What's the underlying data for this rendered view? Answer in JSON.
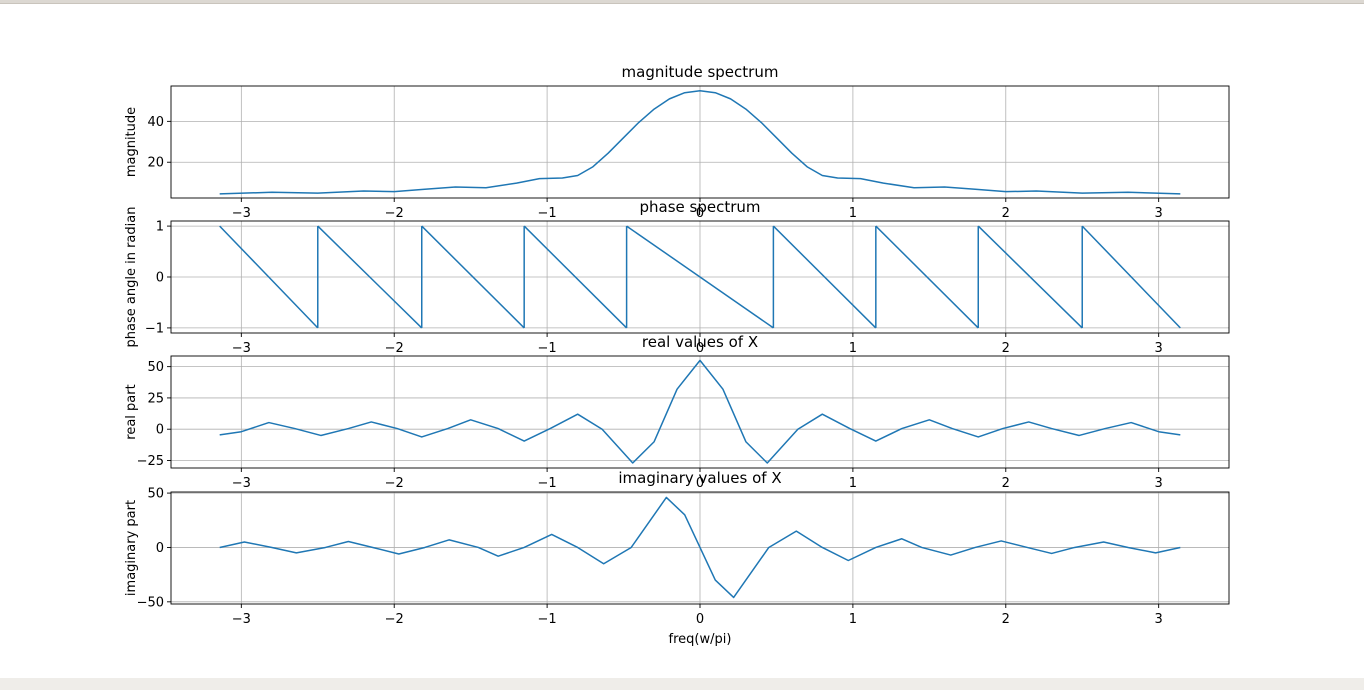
{
  "window": {
    "colors": {
      "line": "#1f77b4",
      "grid": "#b0b0b0",
      "axes": "#000000",
      "toolbar": "#efede9"
    }
  },
  "chart_data": [
    {
      "type": "line",
      "title": "magnitude spectrum",
      "xlabel": "",
      "ylabel": "magnitude",
      "xlim": [
        -3.46,
        3.46
      ],
      "ylim": [
        2.5,
        57.3
      ],
      "xticks": [
        "−3",
        "−2",
        "−1",
        "0",
        "1",
        "2",
        "3"
      ],
      "yticks": [
        "20",
        "40"
      ],
      "grid": true,
      "series": [
        {
          "x": [
            -3.1416,
            -2.8,
            -2.5,
            -2.2,
            -2.0,
            -1.8,
            -1.6,
            -1.4,
            -1.2,
            -1.05,
            -0.9,
            -0.8,
            -0.7,
            -0.6,
            -0.5,
            -0.4,
            -0.3,
            -0.2,
            -0.1,
            0.0,
            0.1,
            0.2,
            0.3,
            0.4,
            0.5,
            0.6,
            0.7,
            0.8,
            0.9,
            1.05,
            1.2,
            1.4,
            1.6,
            1.8,
            2.0,
            2.2,
            2.5,
            2.8,
            3.1416
          ],
          "values": [
            4.5,
            5.3,
            4.9,
            5.9,
            5.6,
            6.8,
            7.9,
            7.5,
            9.8,
            12.0,
            12.3,
            13.5,
            17.8,
            24.5,
            32.0,
            39.5,
            46.0,
            51.0,
            54.0,
            55.0,
            54.0,
            51.0,
            46.0,
            39.5,
            32.0,
            24.5,
            17.8,
            13.5,
            12.3,
            12.0,
            9.8,
            7.5,
            7.9,
            6.8,
            5.6,
            5.9,
            4.9,
            5.3,
            4.5
          ]
        }
      ]
    },
    {
      "type": "line",
      "title": "phase spectrum",
      "xlabel": "",
      "ylabel": "phase angle in radian",
      "xlim": [
        -3.46,
        3.46
      ],
      "ylim": [
        -1.1,
        1.1
      ],
      "xticks": [
        "−3",
        "−2",
        "−1",
        "0",
        "1",
        "2",
        "3"
      ],
      "yticks": [
        "−1",
        "0",
        "1"
      ],
      "grid": true,
      "series": [
        {
          "segments": [
            {
              "x": [
                -3.1416,
                -2.5
              ],
              "values": [
                1,
                -1
              ]
            },
            {
              "x": [
                -2.5,
                -1.82
              ],
              "values": [
                1,
                -1
              ]
            },
            {
              "x": [
                -1.82,
                -1.15
              ],
              "values": [
                1,
                -1
              ]
            },
            {
              "x": [
                -1.15,
                -0.48
              ],
              "values": [
                1,
                -1
              ]
            },
            {
              "x": [
                -0.48,
                0.48
              ],
              "values": [
                1,
                -1
              ]
            },
            {
              "x": [
                0.48,
                1.15
              ],
              "values": [
                1,
                -1
              ]
            },
            {
              "x": [
                1.15,
                1.82
              ],
              "values": [
                1,
                -1
              ]
            },
            {
              "x": [
                1.82,
                2.5
              ],
              "values": [
                1,
                -1
              ]
            },
            {
              "x": [
                2.5,
                3.1416
              ],
              "values": [
                1,
                -1
              ]
            }
          ]
        }
      ]
    },
    {
      "type": "line",
      "title": "real values of X",
      "xlabel": "",
      "ylabel": "real part",
      "xlim": [
        -3.46,
        3.46
      ],
      "ylim": [
        -31,
        58.5
      ],
      "xticks": [
        "−3",
        "−2",
        "−1",
        "0",
        "1",
        "2",
        "3"
      ],
      "yticks": [
        "−25",
        "0",
        "25",
        "50"
      ],
      "grid": true,
      "series": [
        {
          "x": [
            -3.1416,
            -3.0,
            -2.82,
            -2.65,
            -2.48,
            -2.3,
            -2.15,
            -1.98,
            -1.82,
            -1.65,
            -1.5,
            -1.32,
            -1.15,
            -0.98,
            -0.8,
            -0.64,
            -0.44,
            -0.3,
            -0.15,
            0.0,
            0.15,
            0.3,
            0.44,
            0.64,
            0.8,
            0.98,
            1.15,
            1.32,
            1.5,
            1.65,
            1.82,
            1.98,
            2.15,
            2.3,
            2.48,
            2.65,
            2.82,
            3.0,
            3.1416
          ],
          "values": [
            -4.5,
            -2.0,
            5.3,
            0.5,
            -5.0,
            0.5,
            5.8,
            0.5,
            -6.2,
            0.5,
            7.5,
            0.5,
            -9.5,
            0.5,
            12.0,
            0.0,
            -27.0,
            -10.0,
            32.0,
            55.0,
            32.0,
            -10.0,
            -27.0,
            0.0,
            12.0,
            0.5,
            -9.5,
            0.5,
            7.5,
            0.5,
            -6.2,
            0.5,
            5.8,
            0.5,
            -5.0,
            0.5,
            5.3,
            -2.0,
            -4.5
          ]
        }
      ]
    },
    {
      "type": "line",
      "title": "imaginary values of X",
      "xlabel": "freq(w/pi)",
      "ylabel": "imaginary part",
      "xlim": [
        -3.46,
        3.46
      ],
      "ylim": [
        -52,
        51
      ],
      "xticks": [
        "−3",
        "−2",
        "−1",
        "0",
        "1",
        "2",
        "3"
      ],
      "yticks": [
        "−50",
        "0",
        "50"
      ],
      "grid": true,
      "series": [
        {
          "x": [
            -3.1416,
            -2.98,
            -2.8,
            -2.64,
            -2.45,
            -2.3,
            -2.14,
            -1.97,
            -1.8,
            -1.64,
            -1.45,
            -1.32,
            -1.15,
            -0.97,
            -0.8,
            -0.63,
            -0.45,
            -0.22,
            -0.1,
            0.0,
            0.1,
            0.22,
            0.45,
            0.63,
            0.8,
            0.97,
            1.15,
            1.32,
            1.45,
            1.64,
            1.8,
            1.97,
            2.14,
            2.3,
            2.45,
            2.64,
            2.8,
            2.98,
            3.1416
          ],
          "values": [
            0.0,
            5.0,
            0.0,
            -5.0,
            0.0,
            5.5,
            0.0,
            -6.0,
            0.0,
            7.0,
            0.0,
            -8.0,
            0.0,
            12.0,
            0.0,
            -15.0,
            0.0,
            46.0,
            30.0,
            0.0,
            -30.0,
            -46.0,
            0.0,
            15.0,
            0.0,
            -12.0,
            0.0,
            8.0,
            0.0,
            -7.0,
            0.0,
            6.0,
            0.0,
            -5.5,
            0.0,
            5.0,
            0.0,
            -5.0,
            0.0
          ]
        }
      ]
    }
  ]
}
